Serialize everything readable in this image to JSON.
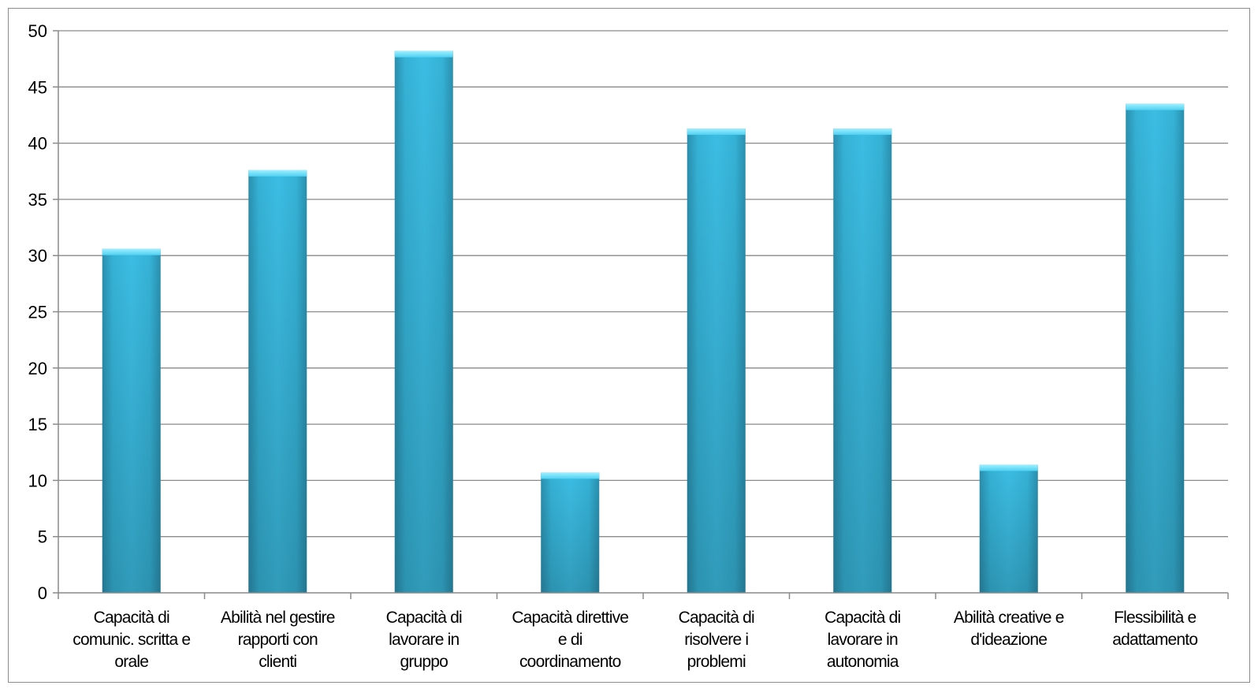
{
  "chart_data": {
    "type": "bar",
    "title": "",
    "xlabel": "",
    "ylabel": "",
    "ylim": [
      0,
      50
    ],
    "yticks": [
      0,
      5,
      10,
      15,
      20,
      25,
      30,
      35,
      40,
      45,
      50
    ],
    "grid": true,
    "legend": "none",
    "bar_color": "#35b4d8",
    "categories": [
      [
        "Capacità di",
        "comunic. scritta e",
        "orale"
      ],
      [
        "Abilità nel gestire",
        "rapporti con",
        "clienti"
      ],
      [
        "Capacità di",
        "lavorare in",
        "gruppo"
      ],
      [
        "Capacità direttive",
        "e di",
        "coordinamento"
      ],
      [
        "Capacità di",
        "risolvere i",
        "problemi"
      ],
      [
        "Capacità di",
        "lavorare in",
        "autonomia"
      ],
      [
        "Abilità creative e",
        "d'ideazione"
      ],
      [
        "Flessibilità e",
        "adattamento"
      ]
    ],
    "values": [
      30.6,
      37.6,
      48.2,
      10.7,
      41.3,
      41.3,
      11.4,
      43.5
    ]
  }
}
